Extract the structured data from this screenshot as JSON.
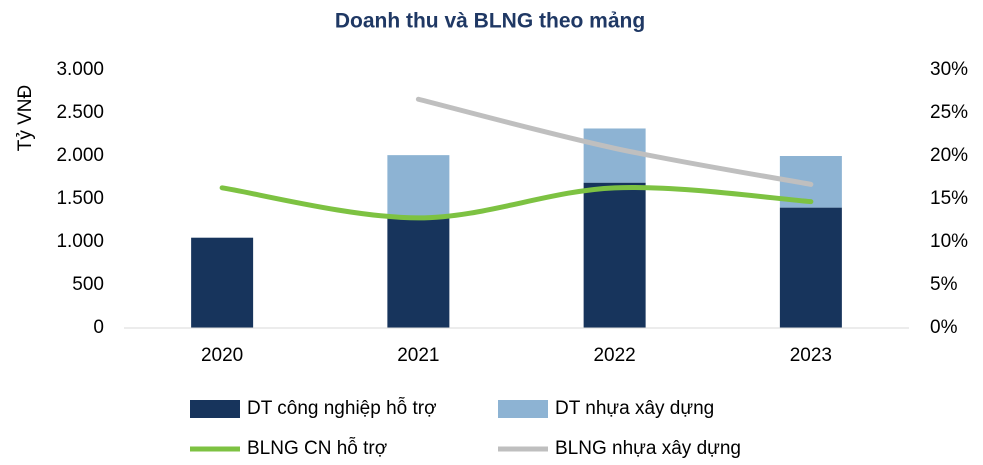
{
  "chart_data": {
    "type": "bar",
    "stacked": true,
    "title": "Doanh thu và BLNG theo mảng",
    "ylabel": "Tỷ VNĐ",
    "categories": [
      "2020",
      "2021",
      "2022",
      "2023"
    ],
    "series": [
      {
        "name": "DT công nghiệp hỗ trợ",
        "color": "#17345c",
        "values": [
          1050,
          1280,
          1690,
          1400
        ]
      },
      {
        "name": "DT nhựa xây dựng",
        "color": "#8db3d3",
        "values": [
          null,
          730,
          630,
          600
        ]
      },
      {
        "name": "BLNG CN hỗ trợ",
        "type": "line",
        "axis": "y2",
        "color": "#7dc242",
        "values": [
          16.3,
          12.8,
          16.3,
          14.7
        ]
      },
      {
        "name": "BLNG nhựa xây dựng",
        "type": "line",
        "axis": "y2",
        "color": "#bfbfbf",
        "values": [
          null,
          26.6,
          20.9,
          16.7
        ]
      }
    ],
    "ylim": [
      0,
      3000
    ],
    "yticks": [
      0,
      500,
      {
        "value": 1000,
        "label": "1.000"
      },
      {
        "value": 1500,
        "label": "1.500"
      },
      {
        "value": 2000,
        "label": "2.000"
      },
      {
        "value": 2500,
        "label": "2.500"
      },
      {
        "value": 3000,
        "label": "3.000"
      }
    ],
    "y2lim": [
      0,
      30
    ],
    "y2ticks": [
      {
        "value": 0,
        "label": "0%"
      },
      {
        "value": 5,
        "label": "5%"
      },
      {
        "value": 10,
        "label": "10%"
      },
      {
        "value": 15,
        "label": "15%"
      },
      {
        "value": 20,
        "label": "20%"
      },
      {
        "value": 25,
        "label": "25%"
      },
      {
        "value": 30,
        "label": "30%"
      }
    ],
    "grid": false
  }
}
